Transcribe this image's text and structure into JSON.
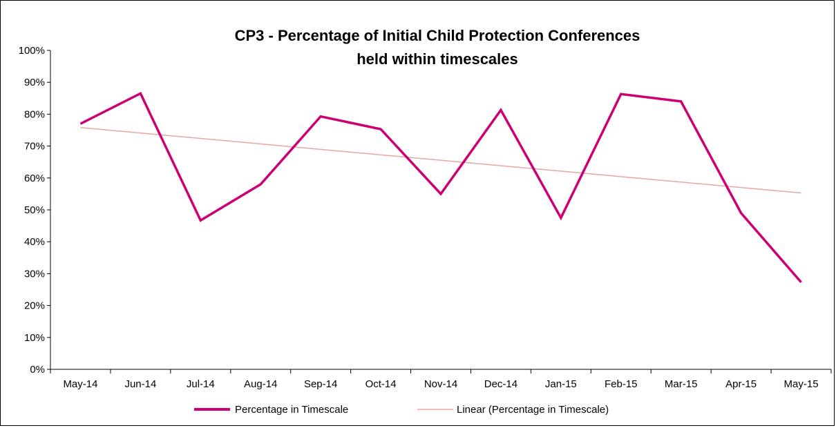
{
  "chart_data": {
    "type": "line",
    "title_line1": "CP3 - Percentage of Initial Child Protection Conferences",
    "title_line2": "held within timescales",
    "categories": [
      "May-14",
      "Jun-14",
      "Jul-14",
      "Aug-14",
      "Sep-14",
      "Oct-14",
      "Nov-14",
      "Dec-14",
      "Jan-15",
      "Feb-15",
      "Mar-15",
      "Apr-15",
      "May-15"
    ],
    "series": [
      {
        "name": "Percentage in Timescale",
        "color": "#cc0073",
        "values": [
          77,
          86.5,
          46.7,
          58,
          79.3,
          75.3,
          55,
          81.3,
          47.5,
          86.3,
          84,
          49,
          27.3
        ]
      }
    ],
    "trendline": {
      "name": "Linear (Percentage in Timescale)",
      "color": "#e8a7a0",
      "type": "linear",
      "start": 75.8,
      "end": 55.3
    },
    "yticks": [
      "0%",
      "10%",
      "20%",
      "30%",
      "40%",
      "50%",
      "60%",
      "70%",
      "80%",
      "90%",
      "100%"
    ],
    "ylim": [
      0,
      100
    ],
    "legend_position": "bottom"
  }
}
